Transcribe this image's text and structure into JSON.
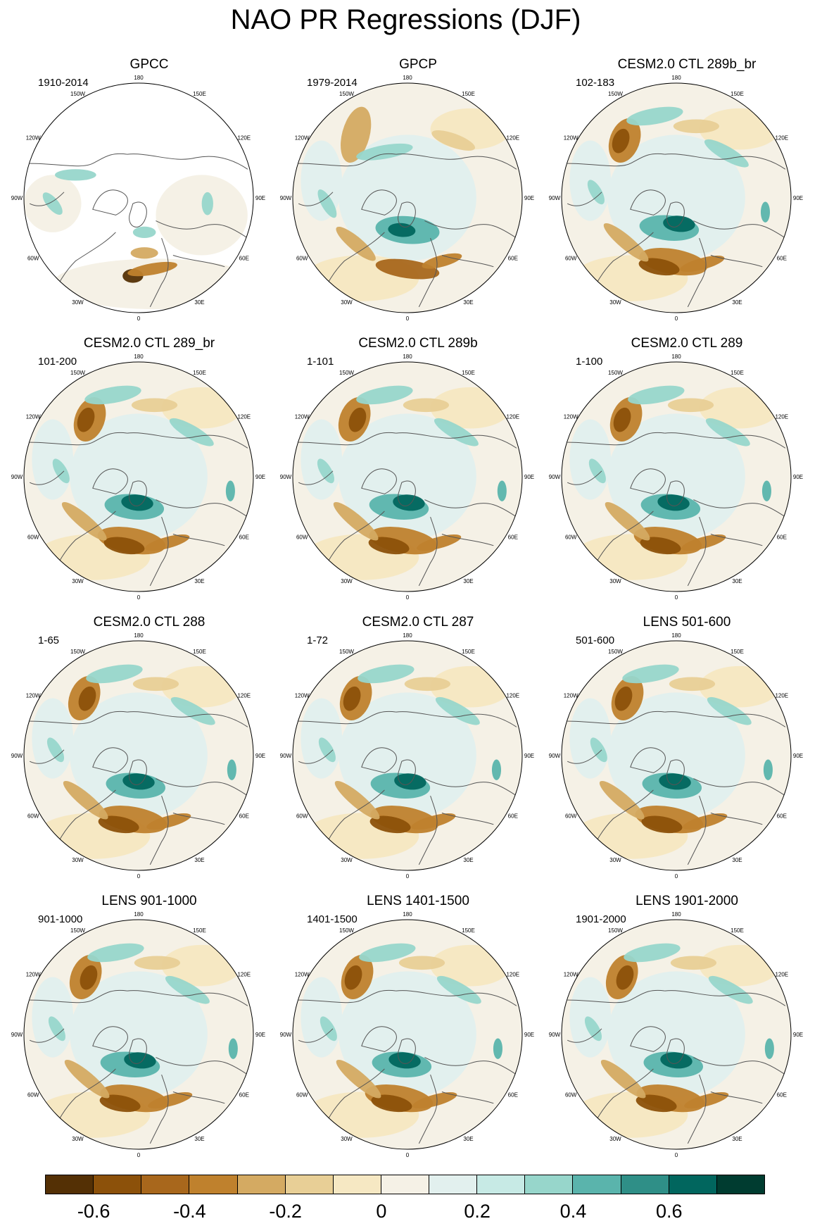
{
  "title": "NAO PR Regressions (DJF)",
  "lon_labels": [
    "180",
    "150E",
    "120E",
    "90E",
    "60E",
    "30E",
    "0",
    "30W",
    "60W",
    "90W",
    "120W",
    "150W"
  ],
  "panels": [
    {
      "title": "GPCC",
      "period": "1910-2014",
      "variant": "gpcc"
    },
    {
      "title": "GPCP",
      "period": "1979-2014",
      "variant": "obs"
    },
    {
      "title": "CESM2.0 CTL 289b_br",
      "period": "102-183",
      "variant": "model"
    },
    {
      "title": "CESM2.0 CTL 289_br",
      "period": "101-200",
      "variant": "model"
    },
    {
      "title": "CESM2.0 CTL 289b",
      "period": "1-101",
      "variant": "model"
    },
    {
      "title": "CESM2.0 CTL 289",
      "period": "1-100",
      "variant": "model"
    },
    {
      "title": "CESM2.0 CTL 288",
      "period": "1-65",
      "variant": "model"
    },
    {
      "title": "CESM2.0 CTL 287",
      "period": "1-72",
      "variant": "model"
    },
    {
      "title": "LENS 501-600",
      "period": "501-600",
      "variant": "model"
    },
    {
      "title": "LENS 901-1000",
      "period": "901-1000",
      "variant": "model"
    },
    {
      "title": "LENS 1401-1500",
      "period": "1401-1500",
      "variant": "model"
    },
    {
      "title": "LENS 1901-2000",
      "period": "1901-2000",
      "variant": "model"
    }
  ],
  "colorbar": {
    "colors": [
      "#543005",
      "#8c510a",
      "#a8671c",
      "#bf812d",
      "#d4aa62",
      "#e8cf96",
      "#f6e8c3",
      "#f5f1e6",
      "#e2f0ee",
      "#c7eae5",
      "#97d6cb",
      "#5ab4ac",
      "#2f8f87",
      "#01665e",
      "#003c30"
    ],
    "tick_labels": [
      "-0.6",
      "-0.4",
      "-0.2",
      "0",
      "0.2",
      "0.4",
      "0.6"
    ]
  }
}
